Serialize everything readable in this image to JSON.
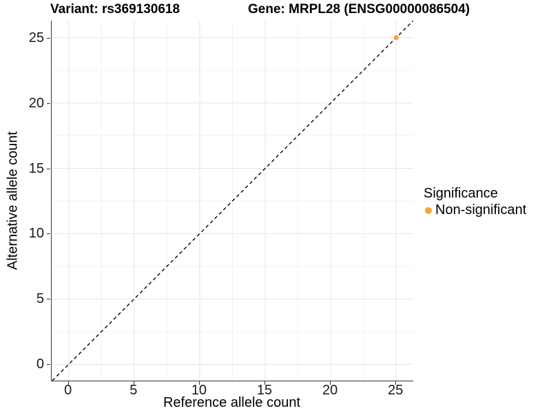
{
  "titles": {
    "variant": "Variant: rs369130618",
    "gene": "Gene: MRPL28 (ENSG00000086504)"
  },
  "axes": {
    "x": {
      "label": "Reference allele count"
    },
    "y": {
      "label": "Alternative allele count"
    }
  },
  "legend": {
    "title": "Significance",
    "items": [
      {
        "label": "Non-significant",
        "color": "#F9A232"
      }
    ]
  },
  "colors": {
    "background": "#FFFFFF",
    "axis_line": "#333333",
    "grid_major": "#E4E4E4",
    "grid_minor": "#F2F2F2",
    "dashed_line": "#000000",
    "tick_mark": "#333333",
    "point": "#F9A232"
  },
  "chart_data": {
    "type": "scatter",
    "title": "Variant: rs369130618 — Gene: MRPL28 (ENSG00000086504)",
    "xlabel": "Reference allele count",
    "ylabel": "Alternative allele count",
    "xlim": [
      -1.3,
      26.3
    ],
    "ylim": [
      -1.25,
      26.3
    ],
    "x_ticks": [
      0,
      5,
      10,
      15,
      20,
      25
    ],
    "y_ticks": [
      0,
      5,
      10,
      15,
      20,
      25
    ],
    "x_minor_ticks": [
      2.5,
      7.5,
      12.5,
      17.5,
      22.5
    ],
    "y_minor_ticks": [
      2.5,
      7.5,
      12.5,
      17.5,
      22.5
    ],
    "grid": true,
    "legend_position": "right",
    "reference_line": {
      "kind": "abline",
      "slope": 1,
      "intercept": 0,
      "style": "dashed",
      "color": "#000000"
    },
    "series": [
      {
        "name": "Non-significant",
        "color": "#F9A232",
        "points": [
          {
            "x": 25,
            "y": 25
          }
        ]
      }
    ]
  }
}
